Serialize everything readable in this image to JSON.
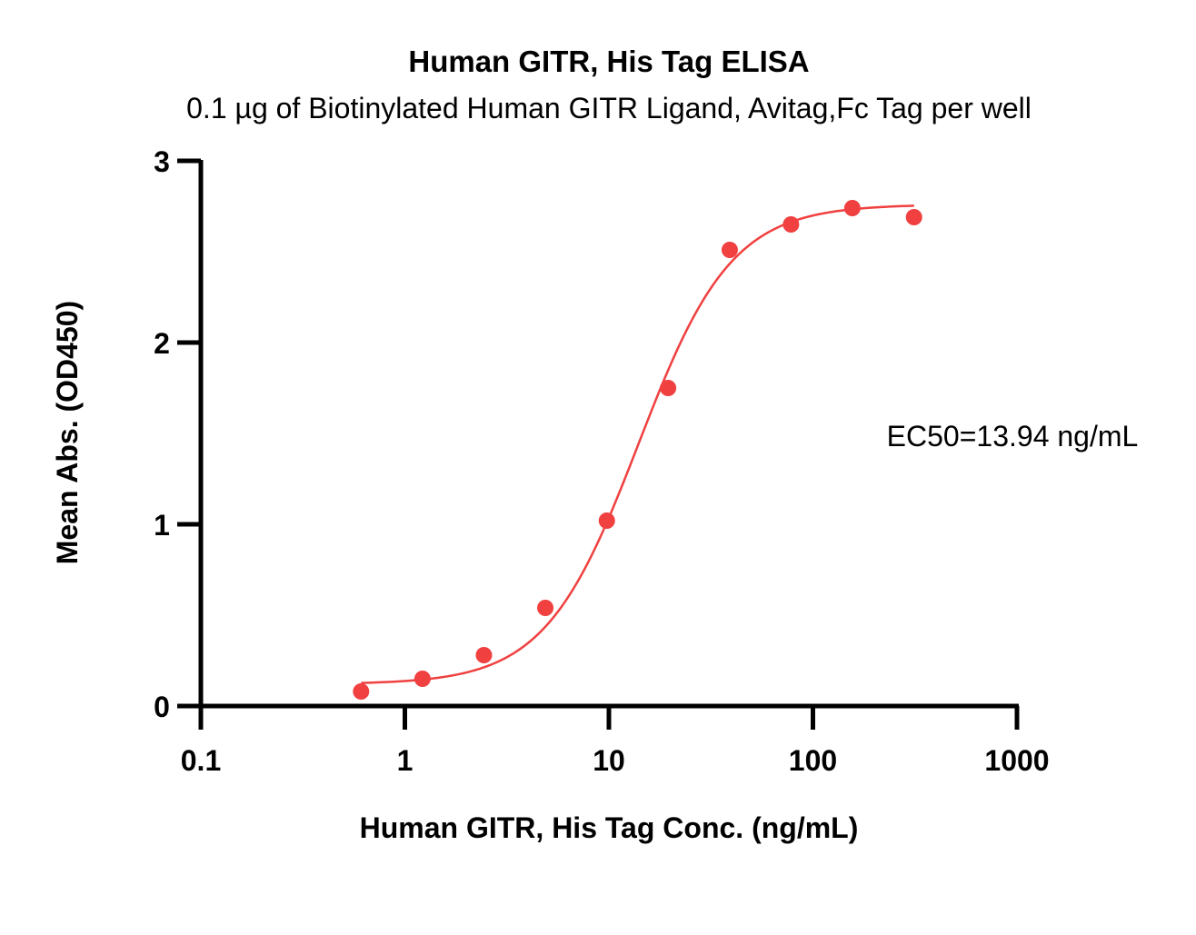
{
  "chart_data": {
    "type": "scatter",
    "title": "Human GITR, His Tag ELISA",
    "subtitle": "0.1 µg of Biotinylated Human GITR Ligand, Avitag,Fc Tag per well",
    "xlabel": "Human GITR, His Tag Conc. (ng/mL)",
    "ylabel": "Mean Abs. (OD450)",
    "xscale": "log",
    "xlim": [
      0.1,
      1000
    ],
    "ylim": [
      0,
      3
    ],
    "x_ticks": [
      "0.1",
      "1",
      "10",
      "100",
      "1000"
    ],
    "y_ticks": [
      "0",
      "1",
      "2",
      "3"
    ],
    "grid": false,
    "color": "#f04040",
    "series": [
      {
        "x": [
          0.61,
          1.22,
          2.44,
          4.88,
          9.77,
          19.5,
          39.1,
          78.1,
          156,
          313
        ],
        "y": [
          0.08,
          0.15,
          0.28,
          0.54,
          1.02,
          1.75,
          2.51,
          2.65,
          2.74,
          2.69
        ]
      }
    ],
    "fit": {
      "model": "4PL",
      "bottom": 0.12,
      "top": 2.76,
      "ec50": 13.94,
      "hill": 1.9,
      "x_range": [
        0.61,
        313
      ]
    },
    "annotation": "EC50=13.94 ng/mL"
  }
}
